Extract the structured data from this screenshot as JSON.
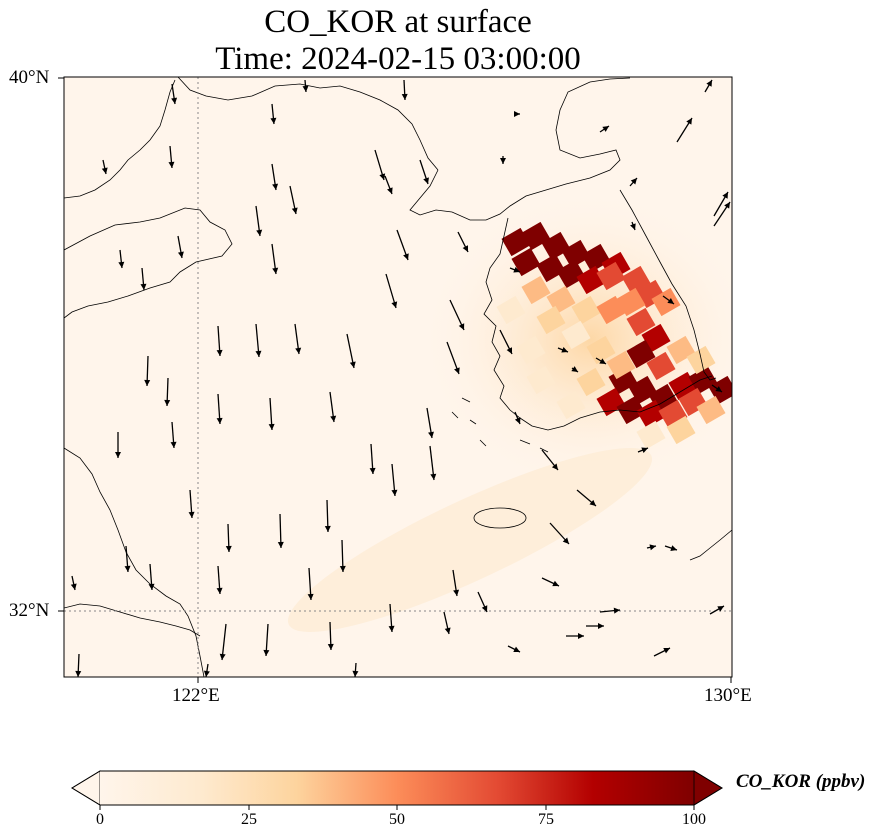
{
  "title_line1": "CO_KOR at surface",
  "title_line2": "Time: 2024-02-15 03:00:00",
  "map": {
    "lon_range": [
      120,
      130
    ],
    "lat_range": [
      31,
      40
    ],
    "lon_gridline": 122,
    "lat_gridline": 32,
    "lon_ticks": [
      "122°E",
      "130°E"
    ],
    "lat_ticks": [
      "40°N",
      "32°N"
    ],
    "plume_color": "#7f0000",
    "background_color": "#fff5eb"
  },
  "colorbar": {
    "label": "CO_KOR (ppbv)",
    "ticks": [
      "0",
      "25",
      "50",
      "75",
      "100"
    ],
    "range": [
      0,
      100
    ],
    "colormap": [
      "#fff5eb",
      "#fdd49e",
      "#fdbb84",
      "#fc8d59",
      "#e34a33",
      "#b30000",
      "#7f0000"
    ],
    "extend": "both"
  }
}
